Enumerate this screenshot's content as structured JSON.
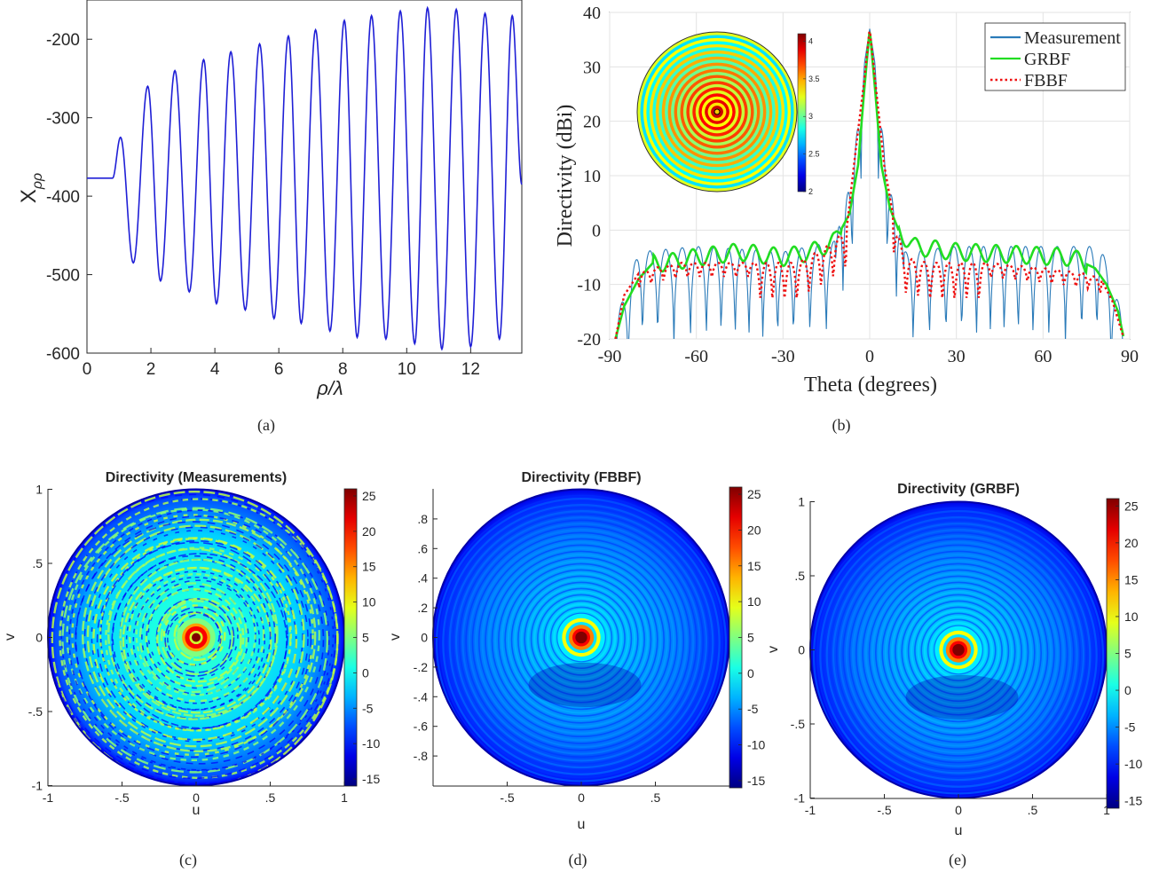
{
  "figure": {
    "captions": [
      "(a)",
      "(b)",
      "(c)",
      "(d)",
      "(e)"
    ]
  },
  "chart_data": [
    {
      "type": "line",
      "panel": "a",
      "xlabel": "ρ/λ",
      "ylabel": "X",
      "ylabel_sub": "ρρ",
      "xlim": [
        0,
        13.6
      ],
      "ylim": [
        -600,
        -150
      ],
      "xticks": [
        0,
        2,
        4,
        6,
        8,
        10,
        12
      ],
      "yticks": [
        -600,
        -500,
        -400,
        -300,
        -200
      ],
      "grid": false,
      "line_color": "#1f1fd6",
      "series": [
        {
          "flat_value": -377,
          "flat_until": 0.8,
          "peaks": [
            [
              1.05,
              -325
            ],
            [
              1.9,
              -260
            ],
            [
              2.75,
              -240
            ],
            [
              3.65,
              -226
            ],
            [
              4.5,
              -216
            ],
            [
              5.4,
              -206
            ],
            [
              6.3,
              -196
            ],
            [
              7.15,
              -188
            ],
            [
              8.05,
              -176
            ],
            [
              8.9,
              -170
            ],
            [
              9.8,
              -164
            ],
            [
              10.65,
              -160
            ],
            [
              11.55,
              -162
            ],
            [
              12.45,
              -167
            ],
            [
              13.3,
              -170
            ]
          ],
          "troughs": [
            [
              1.45,
              -485
            ],
            [
              2.3,
              -508
            ],
            [
              3.2,
              -522
            ],
            [
              4.05,
              -537
            ],
            [
              4.95,
              -545
            ],
            [
              5.85,
              -556
            ],
            [
              6.7,
              -562
            ],
            [
              7.6,
              -572
            ],
            [
              8.45,
              -580
            ],
            [
              9.35,
              -582
            ],
            [
              10.25,
              -588
            ],
            [
              11.1,
              -595
            ],
            [
              12.0,
              -592
            ],
            [
              12.9,
              -582
            ]
          ],
          "end": [
            13.6,
            -385
          ]
        }
      ]
    },
    {
      "type": "line",
      "panel": "b",
      "xlabel": "Theta (degrees)",
      "ylabel": "Directivity (dBi)",
      "xlim": [
        -90,
        90
      ],
      "ylim": [
        -20,
        40
      ],
      "xticks": [
        -90,
        -60,
        -30,
        0,
        30,
        60,
        90
      ],
      "yticks": [
        -20,
        -10,
        0,
        10,
        20,
        30,
        40
      ],
      "grid": true,
      "legend_position": "top-right",
      "series": [
        {
          "name": "Measurement",
          "color": "#2b7bb9",
          "style": "solid",
          "envelope": [
            [
              -90,
              -20
            ],
            [
              -80,
              -4
            ],
            [
              -60,
              -3
            ],
            [
              -30,
              -4
            ],
            [
              -12,
              -2
            ],
            [
              -6,
              10
            ],
            [
              -2,
              30
            ],
            [
              0,
              37
            ],
            [
              2,
              30
            ],
            [
              6,
              10
            ],
            [
              12,
              -4
            ],
            [
              30,
              -3
            ],
            [
              60,
              -3
            ],
            [
              80,
              -3
            ],
            [
              90,
              -20
            ]
          ],
          "null_depth": -20
        },
        {
          "name": "GRBF",
          "color": "#22dd22",
          "style": "solid",
          "points": [
            [
              -88,
              -20
            ],
            [
              -85,
              -14
            ],
            [
              -80,
              -9
            ],
            [
              -75,
              -6
            ],
            [
              -70,
              -6
            ],
            [
              -60,
              -5
            ],
            [
              -45,
              -4
            ],
            [
              -30,
              -5
            ],
            [
              -20,
              -4
            ],
            [
              -12,
              -2
            ],
            [
              -7,
              3
            ],
            [
              -4,
              12
            ],
            [
              -2,
              25
            ],
            [
              0,
              37
            ],
            [
              2,
              25
            ],
            [
              4,
              12
            ],
            [
              7,
              4
            ],
            [
              10,
              0
            ],
            [
              15,
              -3
            ],
            [
              30,
              -4
            ],
            [
              50,
              -4.5
            ],
            [
              70,
              -5
            ],
            [
              78,
              -7
            ],
            [
              82,
              -10
            ],
            [
              86,
              -15
            ],
            [
              88,
              -20
            ]
          ]
        },
        {
          "name": "FBBF",
          "color": "#ee1111",
          "style": "dotted",
          "points": [
            [
              -88,
              -20
            ],
            [
              -85,
              -12
            ],
            [
              -80,
              -8
            ],
            [
              -75,
              -7
            ],
            [
              -65,
              -6
            ],
            [
              -50,
              -6
            ],
            [
              -35,
              -6
            ],
            [
              -25,
              -6
            ],
            [
              -15,
              -3
            ],
            [
              -8,
              0
            ],
            [
              -5,
              14
            ],
            [
              -2,
              27
            ],
            [
              0,
              37
            ],
            [
              2,
              27
            ],
            [
              5,
              12
            ],
            [
              8,
              3
            ],
            [
              12,
              -5
            ],
            [
              20,
              -6
            ],
            [
              40,
              -6
            ],
            [
              60,
              -7
            ],
            [
              75,
              -8
            ],
            [
              80,
              -9
            ],
            [
              84,
              -13
            ],
            [
              88,
              -20
            ]
          ]
        }
      ],
      "inset": {
        "colorbar_ticks": [
          2,
          2.5,
          3,
          3.5,
          4
        ],
        "range": [
          2,
          4.1
        ],
        "rings": 26
      }
    },
    {
      "type": "heatmap",
      "panel": "c",
      "title": "Directivity (Measurements)",
      "xlabel": "u",
      "ylabel": "v",
      "xlim": [
        -1,
        1
      ],
      "ylim": [
        -1,
        1
      ],
      "xticks": [
        -1,
        -0.5,
        0,
        0.5,
        1
      ],
      "yticks": [
        -1,
        -0.5,
        0,
        0.5,
        1
      ],
      "colorbar_ticks": [
        -15,
        -10,
        -5,
        0,
        5,
        10,
        15,
        20,
        25
      ],
      "clim": [
        -16,
        26
      ]
    },
    {
      "type": "heatmap",
      "panel": "d",
      "title": "Directivity (FBBF)",
      "xlabel": "u",
      "ylabel": "v",
      "xlim": [
        -1,
        1
      ],
      "ylim": [
        -1,
        1
      ],
      "xticks": [
        -0.5,
        0,
        0.5
      ],
      "yticks": [
        -0.8,
        -0.6,
        -0.4,
        -0.2,
        0,
        0.2,
        0.4,
        0.6,
        0.8
      ],
      "colorbar_ticks": [
        -15,
        -10,
        -5,
        0,
        5,
        10,
        15,
        20,
        25
      ],
      "clim": [
        -16,
        26
      ]
    },
    {
      "type": "heatmap",
      "panel": "e",
      "title": "Directivity (GRBF)",
      "xlabel": "u",
      "ylabel": "v",
      "xlim": [
        -1,
        1
      ],
      "ylim": [
        -1,
        1
      ],
      "xticks": [
        -1,
        -0.5,
        0,
        0.5,
        1
      ],
      "yticks": [
        -1,
        -0.5,
        0,
        0.5,
        1
      ],
      "colorbar_ticks": [
        -15,
        -10,
        -5,
        0,
        5,
        10,
        15,
        20,
        25
      ],
      "clim": [
        -16,
        26
      ]
    }
  ]
}
